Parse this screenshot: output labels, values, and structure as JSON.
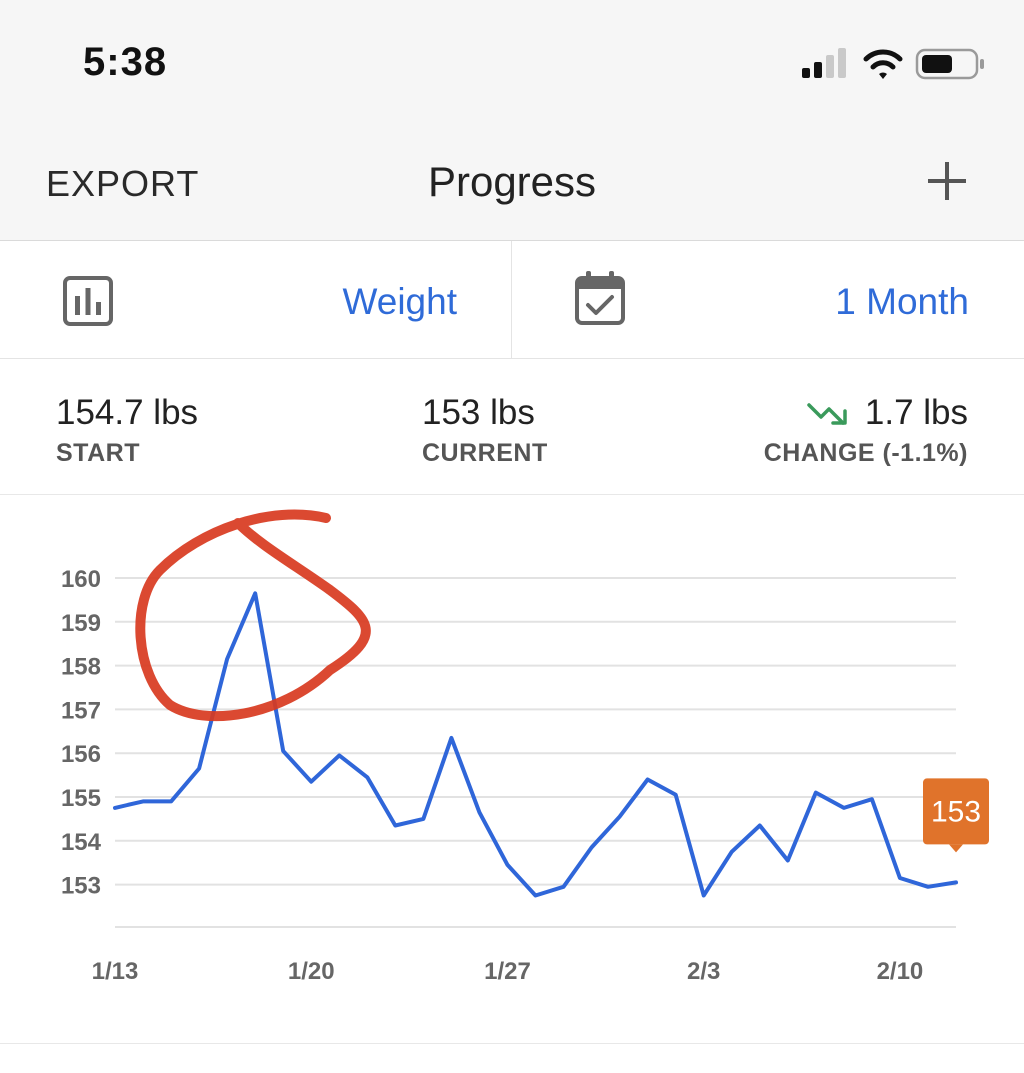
{
  "status_bar": {
    "time": "5:38",
    "icons": [
      "cellular-signal-icon",
      "wifi-icon",
      "battery-icon"
    ]
  },
  "nav": {
    "export_label": "EXPORT",
    "title": "Progress",
    "add_icon": "plus-icon"
  },
  "selectors": {
    "metric": {
      "icon": "bar-chart-icon",
      "value": "Weight"
    },
    "range": {
      "icon": "calendar-check-icon",
      "value": "1 Month"
    }
  },
  "stats": {
    "start": {
      "value": "154.7 lbs",
      "label": "START"
    },
    "current": {
      "value": "153 lbs",
      "label": "CURRENT"
    },
    "change": {
      "icon": "trending-down-icon",
      "value": "1.7 lbs",
      "label": "CHANGE (-1.1%)"
    }
  },
  "colors": {
    "accent": "#2f6bd8",
    "line": "#2f66d9",
    "marker": "#e0732b",
    "trend_down": "#3a9a5b",
    "annotation": "#d8391f"
  },
  "chart_data": {
    "type": "line",
    "title": "",
    "xlabel": "",
    "ylabel": "",
    "x_ticks": [
      "1/13",
      "1/20",
      "1/27",
      "2/3",
      "2/10"
    ],
    "y_ticks": [
      153,
      154,
      155,
      156,
      157,
      158,
      159,
      160
    ],
    "ylim": [
      152,
      160
    ],
    "grid": true,
    "series": [
      {
        "values": [
          154.75,
          154.9,
          154.9,
          155.65,
          158.15,
          159.65,
          156.05,
          155.35,
          155.95,
          155.45,
          154.35,
          154.5,
          156.35,
          154.65,
          153.45,
          152.75,
          152.95,
          153.85,
          154.55,
          155.4,
          155.05,
          152.75,
          153.75,
          154.35,
          153.55,
          155.1,
          154.75,
          154.95,
          153.15,
          152.95,
          153.05
        ]
      }
    ],
    "x_dates": [
      "1/13",
      "1/14",
      "1/15",
      "1/16",
      "1/17",
      "1/18",
      "1/19",
      "1/20",
      "1/21",
      "1/22",
      "1/23",
      "1/24",
      "1/25",
      "1/26",
      "1/27",
      "1/28",
      "1/29",
      "1/30",
      "1/31",
      "2/1",
      "2/2",
      "2/3",
      "2/4",
      "2/5",
      "2/6",
      "2/7",
      "2/8",
      "2/9",
      "2/10",
      "2/11",
      "2/12"
    ],
    "current_marker": {
      "label": "153",
      "value": 153.05
    }
  }
}
